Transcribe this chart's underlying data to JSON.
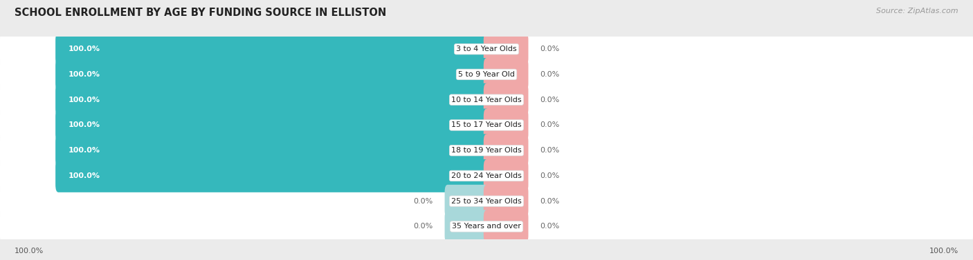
{
  "title": "SCHOOL ENROLLMENT BY AGE BY FUNDING SOURCE IN ELLISTON",
  "source": "Source: ZipAtlas.com",
  "categories": [
    "3 to 4 Year Olds",
    "5 to 9 Year Old",
    "10 to 14 Year Olds",
    "15 to 17 Year Olds",
    "18 to 19 Year Olds",
    "20 to 24 Year Olds",
    "25 to 34 Year Olds",
    "35 Years and over"
  ],
  "public_values": [
    100.0,
    100.0,
    100.0,
    100.0,
    100.0,
    100.0,
    0.0,
    0.0
  ],
  "private_values": [
    0.0,
    0.0,
    0.0,
    0.0,
    0.0,
    0.0,
    0.0,
    0.0
  ],
  "public_color": "#35b8bc",
  "private_color": "#f0a8a8",
  "public_color_zero": "#a8d8da",
  "bg_color": "#ebebeb",
  "row_color": "#f5f5f5",
  "title_fontsize": 10.5,
  "bar_label_fontsize": 8,
  "cat_label_fontsize": 8,
  "axis_label_fontsize": 8,
  "legend_fontsize": 8.5,
  "source_fontsize": 8
}
